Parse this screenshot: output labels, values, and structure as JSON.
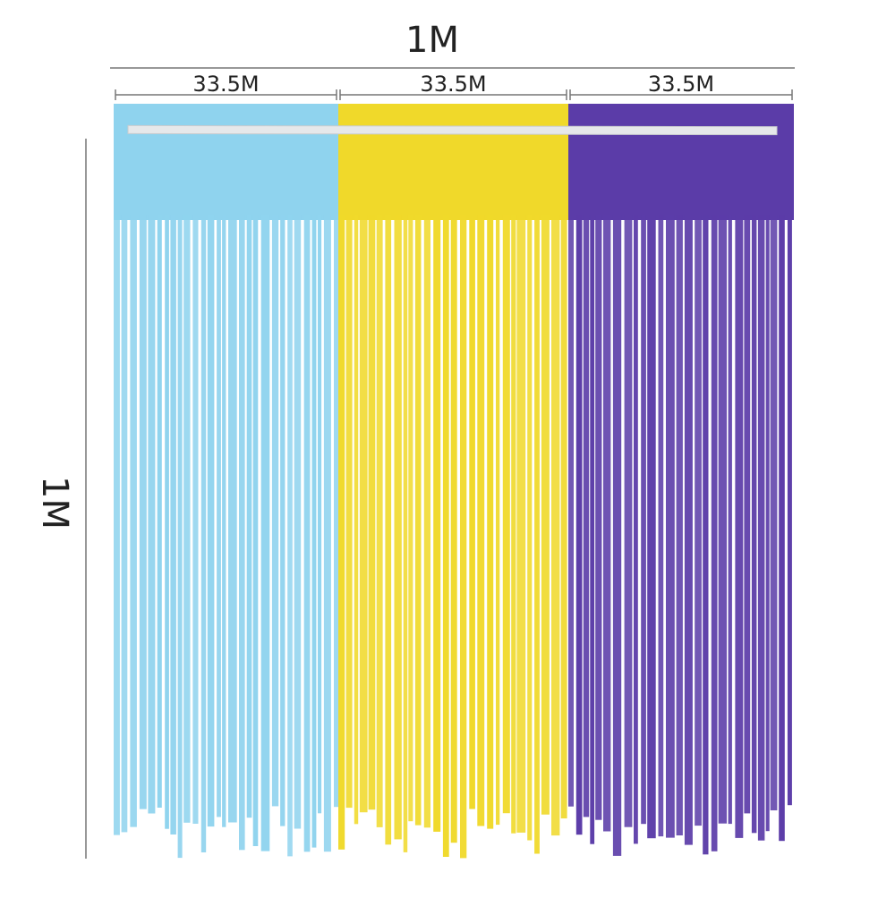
{
  "dimensions": {
    "total_width": "1M",
    "height": "1M",
    "panels": [
      {
        "label": "33.5M",
        "color": "#8fd3ee"
      },
      {
        "label": "33.5M",
        "color": "#f0d92a"
      },
      {
        "label": "33.5M",
        "color": "#5b3ca8"
      }
    ]
  }
}
